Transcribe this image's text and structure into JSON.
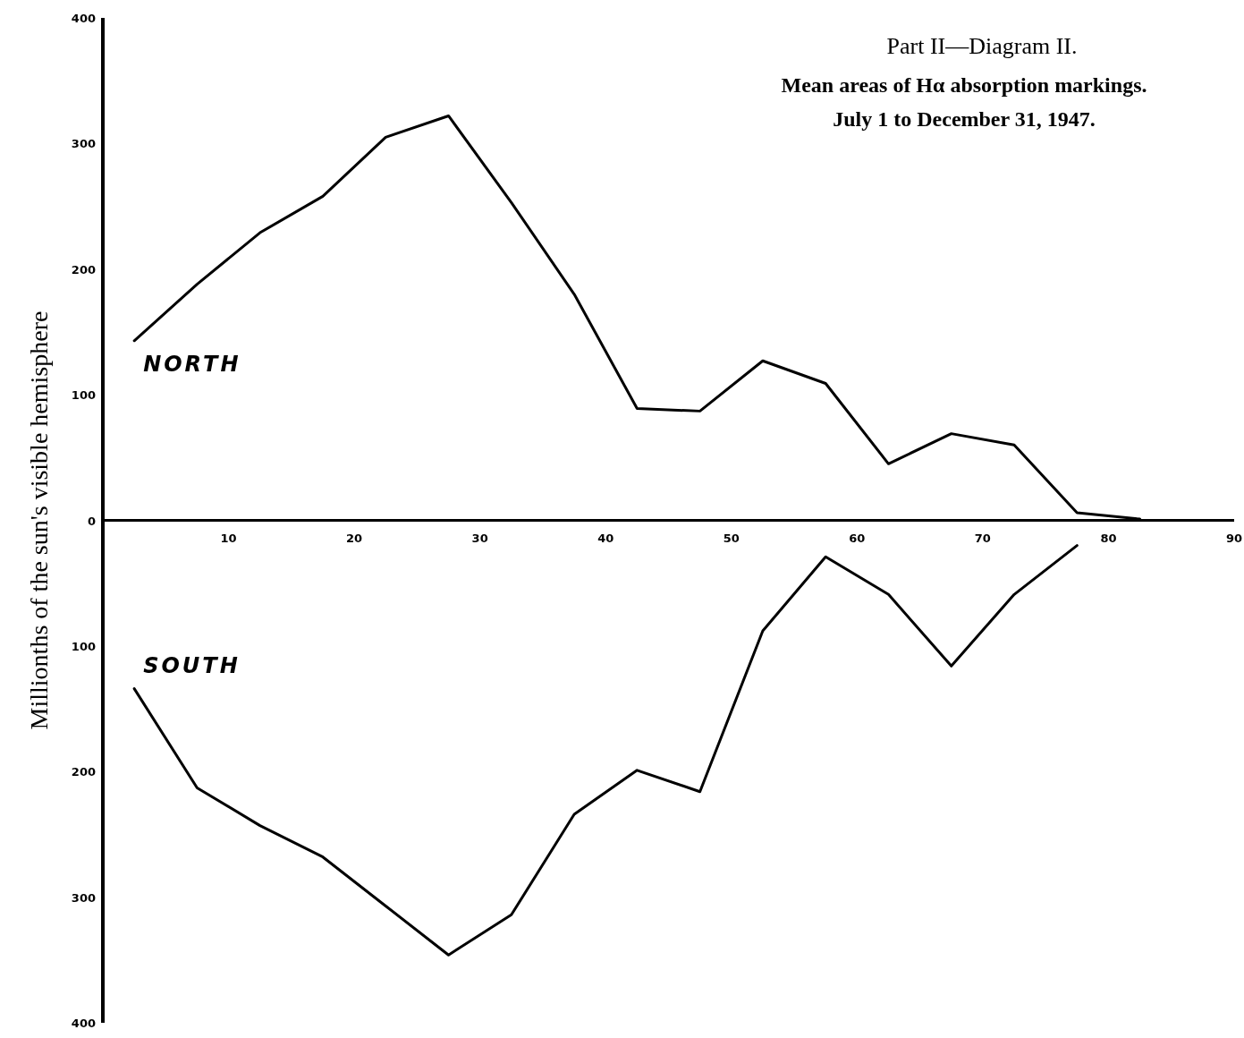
{
  "chart_data": {
    "type": "line",
    "title": "Part II—Diagram II.",
    "subtitle": "Mean areas of Hα absorption markings.\nJuly 1 to December 31, 1947.",
    "ylabel": "Millionths of the sun's visible hemisphere",
    "x": [
      2.5,
      7.5,
      12.5,
      17.5,
      22.5,
      27.5,
      32.5,
      37.5,
      42.5,
      47.5,
      52.5,
      57.5,
      62.5,
      67.5,
      72.5,
      77.5,
      82.5
    ],
    "series": [
      {
        "name": "NORTH",
        "color": "#000000",
        "values": [
          143,
          188,
          229,
          258,
          305,
          322,
          253,
          180,
          89,
          87,
          127,
          109,
          45,
          69,
          60,
          6,
          1
        ]
      },
      {
        "name": "SOUTH",
        "color": "#000000",
        "x": [
          2.5,
          7.5,
          12.5,
          17.5,
          22.5,
          27.5,
          32.5,
          37.5,
          42.5,
          47.5,
          52.5,
          57.5,
          62.5,
          67.5,
          72.5,
          77.5
        ],
        "values": [
          -134,
          -213,
          -243,
          -268,
          -307,
          -346,
          -314,
          -234,
          -199,
          -216,
          -88,
          -29,
          -59,
          -116,
          -59,
          -20
        ]
      }
    ],
    "xlim": [
      0,
      90
    ],
    "xticks": [
      10,
      20,
      30,
      40,
      50,
      60,
      70,
      80,
      90
    ],
    "ylim": [
      -400,
      400
    ],
    "yticks": [
      {
        "value": -400,
        "label": "400"
      },
      {
        "value": -300,
        "label": "300"
      },
      {
        "value": -200,
        "label": "200"
      },
      {
        "value": -100,
        "label": "100"
      },
      0,
      100,
      200,
      300,
      400
    ],
    "grid": false,
    "legend": false,
    "marker": "none",
    "line_style": "solid"
  }
}
